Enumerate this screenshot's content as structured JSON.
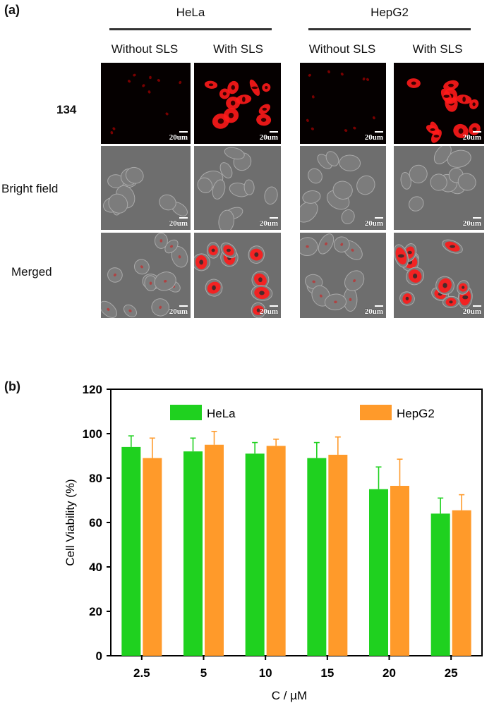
{
  "panel_a": {
    "label": "(a)",
    "groups": [
      {
        "title": "HeLa",
        "columns": [
          "Without SLS",
          "With SLS"
        ]
      },
      {
        "title": "HepG2",
        "columns": [
          "Without SLS",
          "With SLS"
        ]
      }
    ],
    "rows": [
      "134",
      "Bright field",
      "Merged"
    ],
    "scale_bar_label": "20um"
  },
  "panel_b": {
    "label": "(b)"
  },
  "chart_data": {
    "type": "bar",
    "categories": [
      "2.5",
      "5",
      "10",
      "15",
      "20",
      "25"
    ],
    "series": [
      {
        "name": "HeLa",
        "color": "#1fd11f",
        "values": [
          94,
          92,
          91,
          89,
          75,
          64
        ],
        "errors": [
          5,
          6,
          5,
          7,
          10,
          7
        ]
      },
      {
        "name": "HepG2",
        "color": "#ff9a2a",
        "values": [
          89,
          95,
          94.5,
          90.5,
          76.5,
          65.5
        ],
        "errors": [
          9,
          6,
          3,
          8,
          12,
          7
        ]
      }
    ],
    "xlabel": "C / µM",
    "ylabel": "Cell Viability (%)",
    "ylim": [
      0,
      120
    ],
    "yticks": [
      0,
      20,
      40,
      60,
      80,
      100,
      120
    ],
    "grid": false,
    "legend_position": "top"
  }
}
